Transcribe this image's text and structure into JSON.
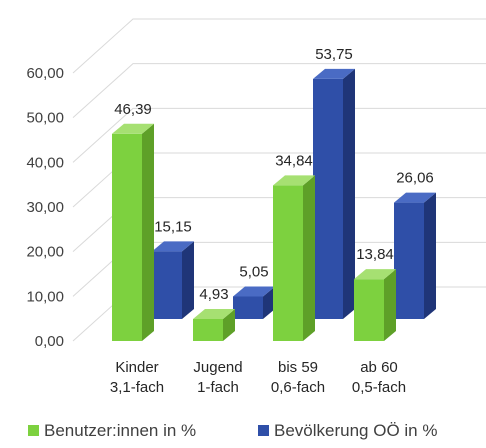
{
  "chart_data": {
    "type": "bar",
    "three_d": true,
    "categories": [
      {
        "line1": "Kinder",
        "line2": "3,1-fach"
      },
      {
        "line1": "Jugend",
        "line2": "1-fach"
      },
      {
        "line1": "bis 59",
        "line2": "0,6-fach"
      },
      {
        "line1": "ab 60",
        "line2": "0,5-fach"
      }
    ],
    "series": [
      {
        "name": "Benutzer:innen in %",
        "values": [
          46.39,
          4.93,
          34.84,
          13.84
        ],
        "labels": [
          "46,39",
          "4,93",
          "34,84",
          "13,84"
        ],
        "color": "#7dd13f",
        "side_color": "#5ea028",
        "top_color": "#a6e072"
      },
      {
        "name": "Bevölkerung OÖ in %",
        "values": [
          15.15,
          5.05,
          53.75,
          26.06
        ],
        "labels": [
          "15,15",
          "5,05",
          "53,75",
          "26,06"
        ],
        "color": "#2f4fa8",
        "side_color": "#1f3578",
        "top_color": "#4a6bc4"
      }
    ],
    "ylim": [
      0,
      60
    ],
    "yticks": [
      0,
      10,
      20,
      30,
      40,
      50,
      60
    ],
    "ytick_labels": [
      "0,00",
      "10,00",
      "20,00",
      "30,00",
      "40,00",
      "50,00",
      "60,00"
    ],
    "grid": true,
    "legend_position": "bottom",
    "title": "",
    "xlabel": "",
    "ylabel": ""
  }
}
